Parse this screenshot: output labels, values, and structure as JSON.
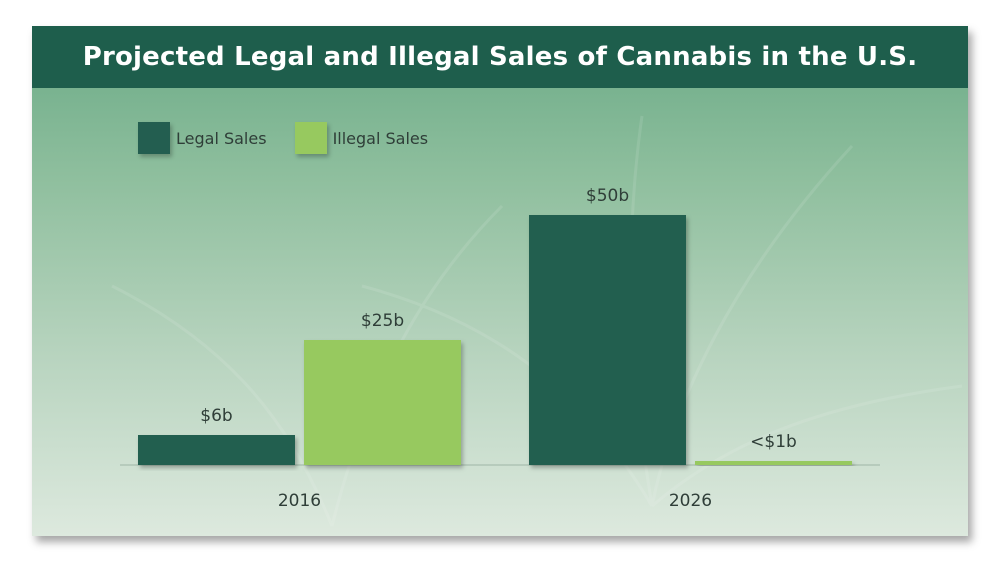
{
  "colors": {
    "legal": "#235e50",
    "illegal": "#97c95f",
    "title_bg": "#1e5e4c"
  },
  "chart_data": {
    "type": "bar",
    "title": "Projected Legal and Illegal Sales of Cannabis in the U.S.",
    "categories": [
      "2016",
      "2026"
    ],
    "series": [
      {
        "name": "Legal Sales",
        "values": [
          6,
          50
        ],
        "labels": [
          "$6b",
          "$50b"
        ]
      },
      {
        "name": "Illegal Sales",
        "values": [
          25,
          0.4
        ],
        "labels": [
          "$25b",
          "<$1b"
        ]
      }
    ],
    "ylim": [
      0,
      55
    ],
    "legend_position": "top-left",
    "grid": false,
    "xlabel": "",
    "ylabel": ""
  }
}
